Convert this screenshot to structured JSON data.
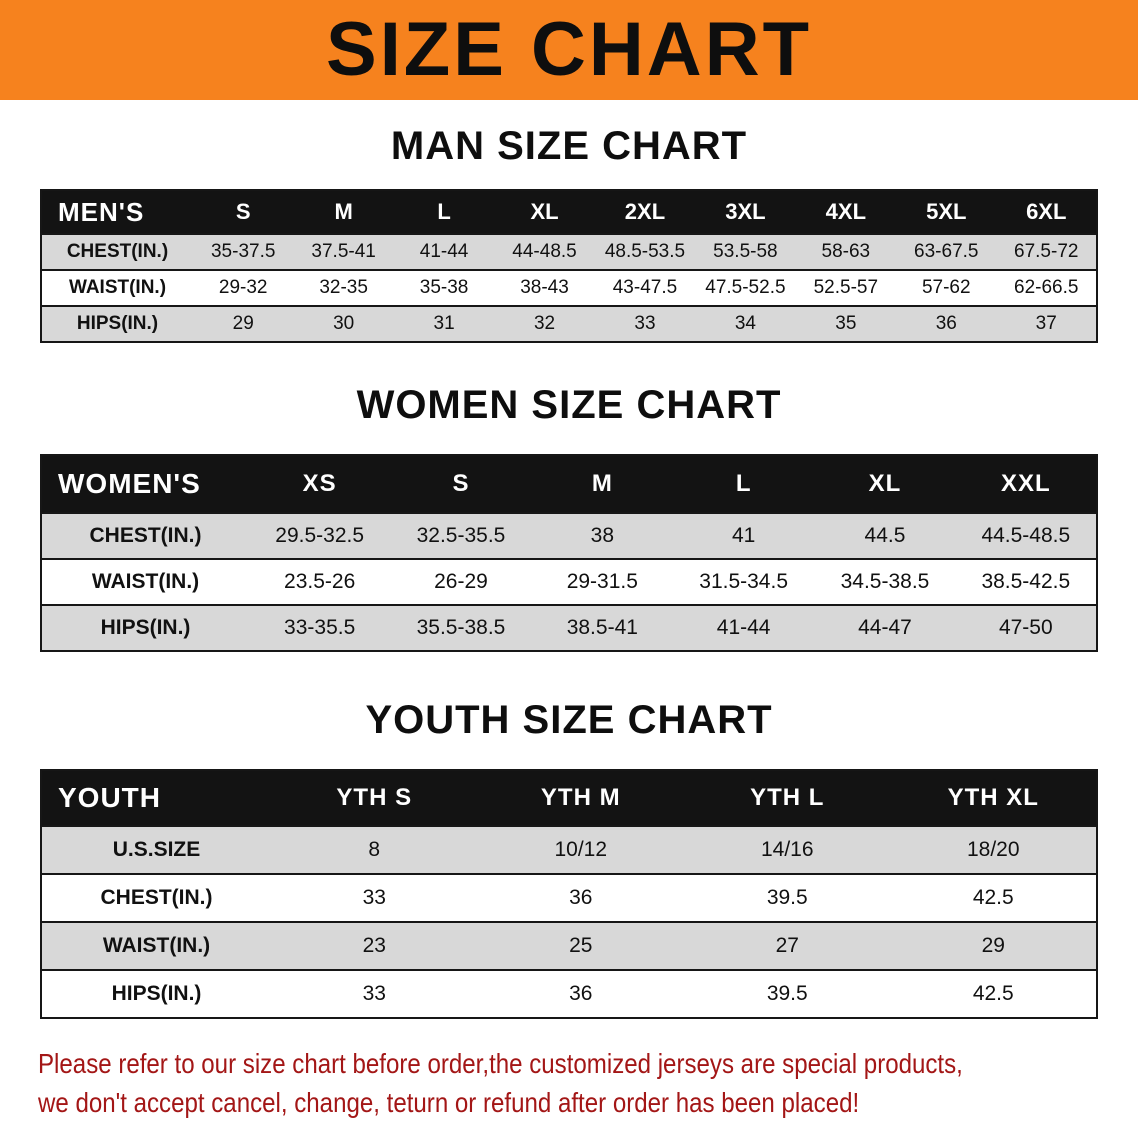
{
  "banner": {
    "title": "SIZE CHART"
  },
  "colors": {
    "banner_bg": "#F6821E",
    "title_text": "#0E0E0E",
    "table_header_bg": "#131313",
    "table_header_text": "#FFFFFF",
    "row_shaded": "#D8D8D8",
    "row_plain": "#FFFFFF",
    "footer_text": "#A31616"
  },
  "men_section": {
    "heading": "MAN SIZE CHART",
    "header": [
      "MEN'S",
      "S",
      "M",
      "L",
      "XL",
      "2XL",
      "3XL",
      "4XL",
      "5XL",
      "6XL"
    ],
    "rows": [
      {
        "label": "CHEST(IN.)",
        "values": [
          "35-37.5",
          "37.5-41",
          "41-44",
          "44-48.5",
          "48.5-53.5",
          "53.5-58",
          "58-63",
          "63-67.5",
          "67.5-72"
        ]
      },
      {
        "label": "WAIST(IN.)",
        "values": [
          "29-32",
          "32-35",
          "35-38",
          "38-43",
          "43-47.5",
          "47.5-52.5",
          "52.5-57",
          "57-62",
          "62-66.5"
        ]
      },
      {
        "label": "HIPS(IN.)",
        "values": [
          "29",
          "30",
          "31",
          "32",
          "33",
          "34",
          "35",
          "36",
          "37"
        ]
      }
    ]
  },
  "women_section": {
    "heading": "WOMEN SIZE CHART",
    "header": [
      "WOMEN'S",
      "XS",
      "S",
      "M",
      "L",
      "XL",
      "XXL"
    ],
    "rows": [
      {
        "label": "CHEST(IN.)",
        "values": [
          "29.5-32.5",
          "32.5-35.5",
          "38",
          "41",
          "44.5",
          "44.5-48.5"
        ]
      },
      {
        "label": "WAIST(IN.)",
        "values": [
          "23.5-26",
          "26-29",
          "29-31.5",
          "31.5-34.5",
          "34.5-38.5",
          "38.5-42.5"
        ]
      },
      {
        "label": "HIPS(IN.)",
        "values": [
          "33-35.5",
          "35.5-38.5",
          "38.5-41",
          "41-44",
          "44-47",
          "47-50"
        ]
      }
    ]
  },
  "youth_section": {
    "heading": "YOUTH SIZE CHART",
    "header": [
      "YOUTH",
      "YTH S",
      "YTH M",
      "YTH L",
      "YTH XL"
    ],
    "rows": [
      {
        "label": "U.S.SIZE",
        "values": [
          "8",
          "10/12",
          "14/16",
          "18/20"
        ]
      },
      {
        "label": "CHEST(IN.)",
        "values": [
          "33",
          "36",
          "39.5",
          "42.5"
        ]
      },
      {
        "label": "WAIST(IN.)",
        "values": [
          "23",
          "25",
          "27",
          "29"
        ]
      },
      {
        "label": "HIPS(IN.)",
        "values": [
          "33",
          "36",
          "39.5",
          "42.5"
        ]
      }
    ]
  },
  "footer": {
    "line1": "Please refer to our size chart before order,the customized jerseys are special products,",
    "line2": "we don't accept cancel, change, teturn or refund after order has been placed!"
  }
}
